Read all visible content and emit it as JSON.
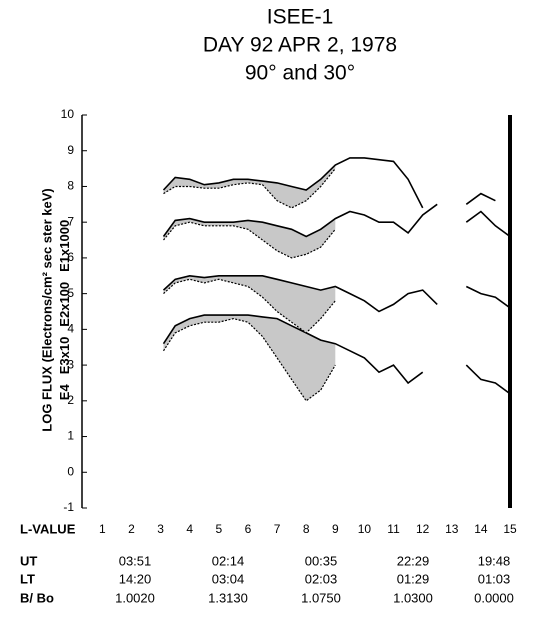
{
  "chart_data": {
    "type": "line",
    "title": [
      "ISEE-1",
      "DAY 92  APR 2, 1978",
      "90° and 30°"
    ],
    "y_label": "LOG FLUX (Electrons/cm² sec ster keV)",
    "x_label": "L-VALUE",
    "xlim": [
      0.3,
      15
    ],
    "xticks": [
      1,
      2,
      3,
      4,
      5,
      6,
      7,
      8,
      9,
      10,
      11,
      12,
      13,
      14,
      15
    ],
    "ylim": [
      -1,
      10
    ],
    "yticks": [
      -1,
      0,
      1,
      2,
      3,
      4,
      5,
      6,
      7,
      8,
      9,
      10
    ],
    "x": [
      3.1,
      3.5,
      4,
      4.5,
      5,
      5.5,
      6,
      6.5,
      7,
      7.5,
      8,
      8.5,
      9,
      9.5,
      10,
      10.5,
      11,
      11.5,
      12,
      12.5,
      13,
      13.5,
      14,
      14.5,
      15
    ],
    "series": [
      {
        "name": "E4",
        "color": "#000000",
        "values": [
          3.6,
          4.1,
          4.3,
          4.4,
          4.4,
          4.4,
          4.4,
          4.35,
          4.3,
          4.1,
          3.9,
          3.7,
          3.6,
          3.4,
          3.2,
          2.8,
          3.0,
          2.5,
          2.8,
          null,
          null,
          3.0,
          2.6,
          2.5,
          2.2
        ],
        "values_30": [
          3.4,
          3.9,
          4.1,
          4.2,
          4.2,
          4.3,
          4.2,
          3.8,
          3.2,
          2.6,
          2.0,
          2.3,
          3.0,
          null,
          null,
          null,
          null,
          null,
          null,
          null,
          null,
          null,
          null,
          null,
          null
        ]
      },
      {
        "name": "E3x10",
        "color": "#000000",
        "values": [
          5.1,
          5.4,
          5.5,
          5.45,
          5.5,
          5.5,
          5.5,
          5.5,
          5.4,
          5.3,
          5.2,
          5.1,
          5.2,
          5.0,
          4.8,
          4.5,
          4.7,
          5.0,
          5.1,
          4.7,
          null,
          5.2,
          5.0,
          4.9,
          4.6
        ],
        "values_30": [
          5.0,
          5.3,
          5.4,
          5.3,
          5.4,
          5.3,
          5.2,
          4.9,
          4.5,
          4.2,
          3.9,
          4.3,
          4.8,
          null,
          null,
          null,
          null,
          null,
          null,
          null,
          null,
          null,
          null,
          null,
          null
        ]
      },
      {
        "name": "E2x100",
        "color": "#000000",
        "values": [
          6.6,
          7.05,
          7.1,
          7.0,
          7.0,
          7.0,
          7.05,
          7.0,
          6.9,
          6.8,
          6.6,
          6.8,
          7.1,
          7.3,
          7.2,
          7.0,
          7.0,
          6.7,
          7.2,
          7.5,
          null,
          7.0,
          7.3,
          6.9,
          6.6
        ],
        "values_30": [
          6.5,
          6.9,
          7.0,
          6.9,
          6.9,
          6.9,
          6.8,
          6.5,
          6.2,
          6.0,
          6.1,
          6.3,
          6.8,
          null,
          null,
          null,
          null,
          null,
          null,
          null,
          null,
          null,
          null,
          null,
          null
        ]
      },
      {
        "name": "E1x1000",
        "color": "#000000",
        "values": [
          7.9,
          8.25,
          8.2,
          8.05,
          8.1,
          8.2,
          8.2,
          8.15,
          8.1,
          8.0,
          7.9,
          8.2,
          8.6,
          8.8,
          8.8,
          8.75,
          8.7,
          8.2,
          7.4,
          null,
          null,
          7.5,
          7.8,
          7.6,
          null
        ],
        "values_30": [
          7.8,
          8.0,
          8.0,
          7.95,
          7.95,
          8.05,
          8.1,
          8.05,
          7.6,
          7.4,
          7.6,
          8.0,
          8.5,
          null,
          null,
          null,
          null,
          null,
          null,
          null,
          null,
          null,
          null,
          null,
          null
        ]
      }
    ],
    "table": {
      "rows": [
        {
          "label": "UT",
          "values": [
            "03:51",
            "02:14",
            "00:35",
            "22:29",
            "19:48"
          ]
        },
        {
          "label": "LT",
          "values": [
            "14:20",
            "03:04",
            "02:03",
            "01:29",
            "01:03"
          ]
        },
        {
          "label": "B/ Bo",
          "values": [
            "1.0020",
            "1.3130",
            "1.0750",
            "1.0300",
            "0.0000"
          ]
        }
      ]
    }
  }
}
